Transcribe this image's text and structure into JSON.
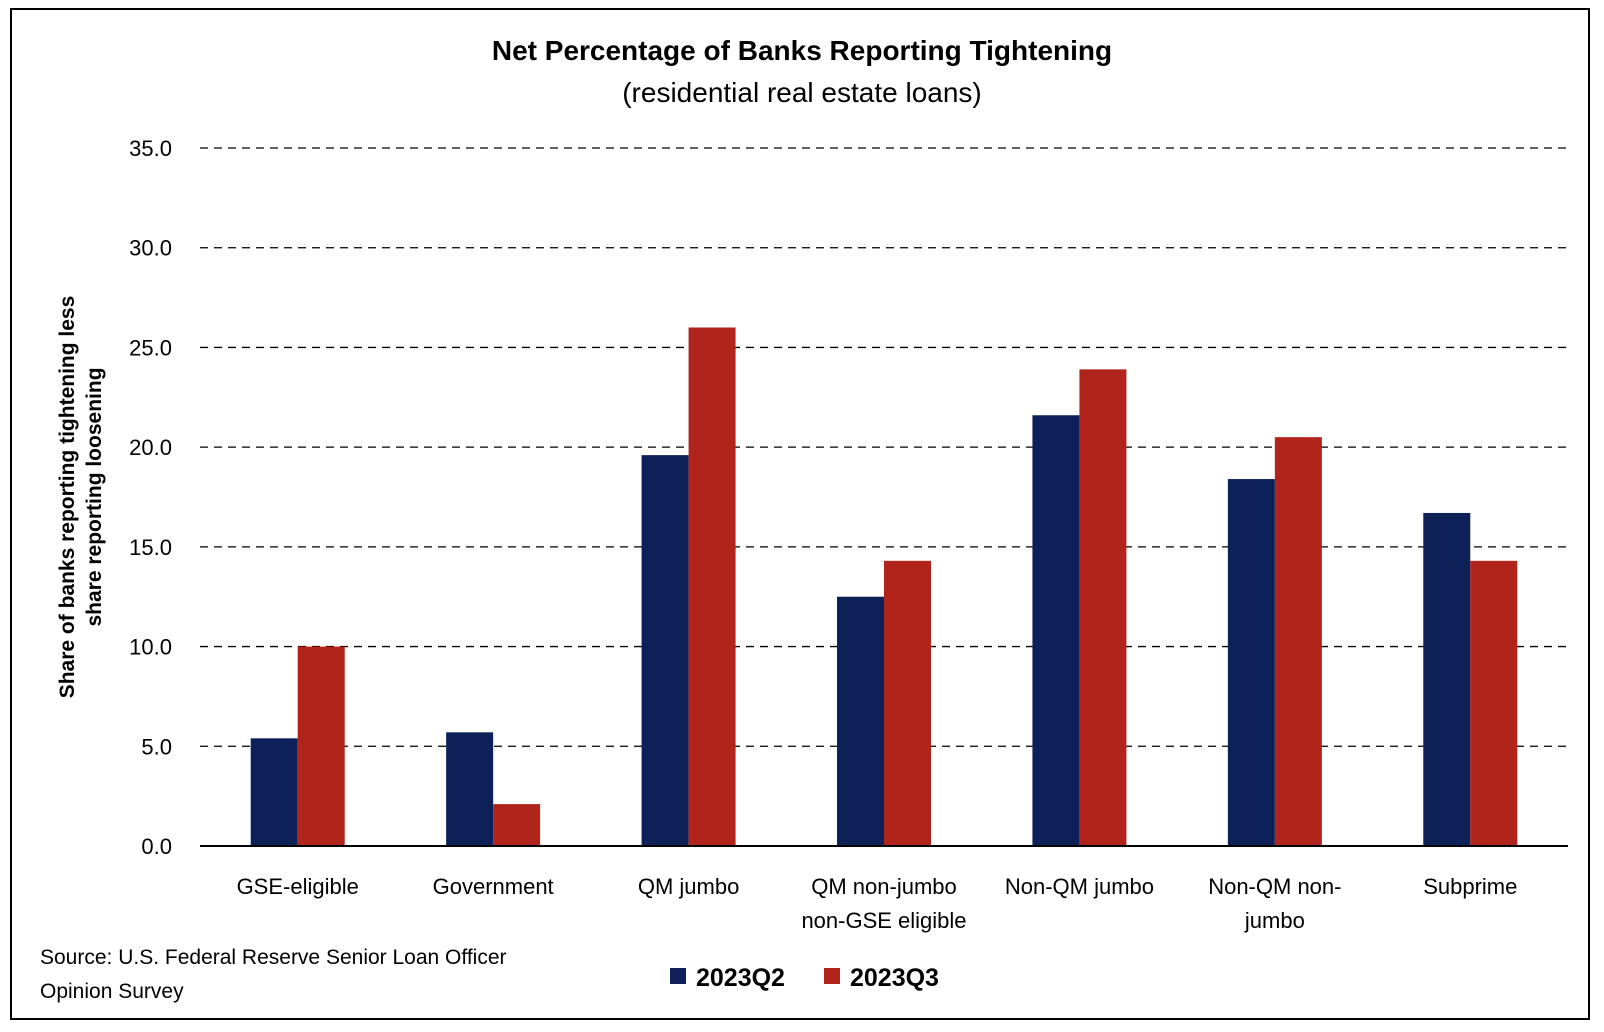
{
  "chart_data": {
    "type": "bar",
    "title": "Net Percentage of Banks Reporting Tightening",
    "subtitle": "(residential real estate loans)",
    "ylabel_lines": [
      "Share of banks reporting tightening less",
      "share reporting loosening"
    ],
    "ylim": [
      0,
      35
    ],
    "yticks": [
      0,
      5,
      10,
      15,
      20,
      25,
      30,
      35
    ],
    "ytick_labels": [
      "0.0",
      "5.0",
      "10.0",
      "15.0",
      "20.0",
      "25.0",
      "30.0",
      "35.0"
    ],
    "grid": true,
    "categories": [
      [
        "GSE-eligible"
      ],
      [
        "Government"
      ],
      [
        "QM jumbo"
      ],
      [
        "QM non-jumbo",
        "non-GSE eligible"
      ],
      [
        "Non-QM jumbo"
      ],
      [
        "Non-QM non-",
        "jumbo"
      ],
      [
        "Subprime"
      ]
    ],
    "series": [
      {
        "name": "2023Q2",
        "color": "#0d2158",
        "values": [
          5.4,
          5.7,
          19.6,
          12.5,
          21.6,
          18.4,
          16.7
        ]
      },
      {
        "name": "2023Q3",
        "color": "#b0241b",
        "values": [
          10.0,
          2.1,
          26.0,
          14.3,
          23.9,
          20.5,
          14.3
        ]
      }
    ],
    "legend_position": "bottom-center",
    "source_lines": [
      "Source: U.S. Federal Reserve Senior Loan Officer",
      "Opinion Survey"
    ]
  }
}
